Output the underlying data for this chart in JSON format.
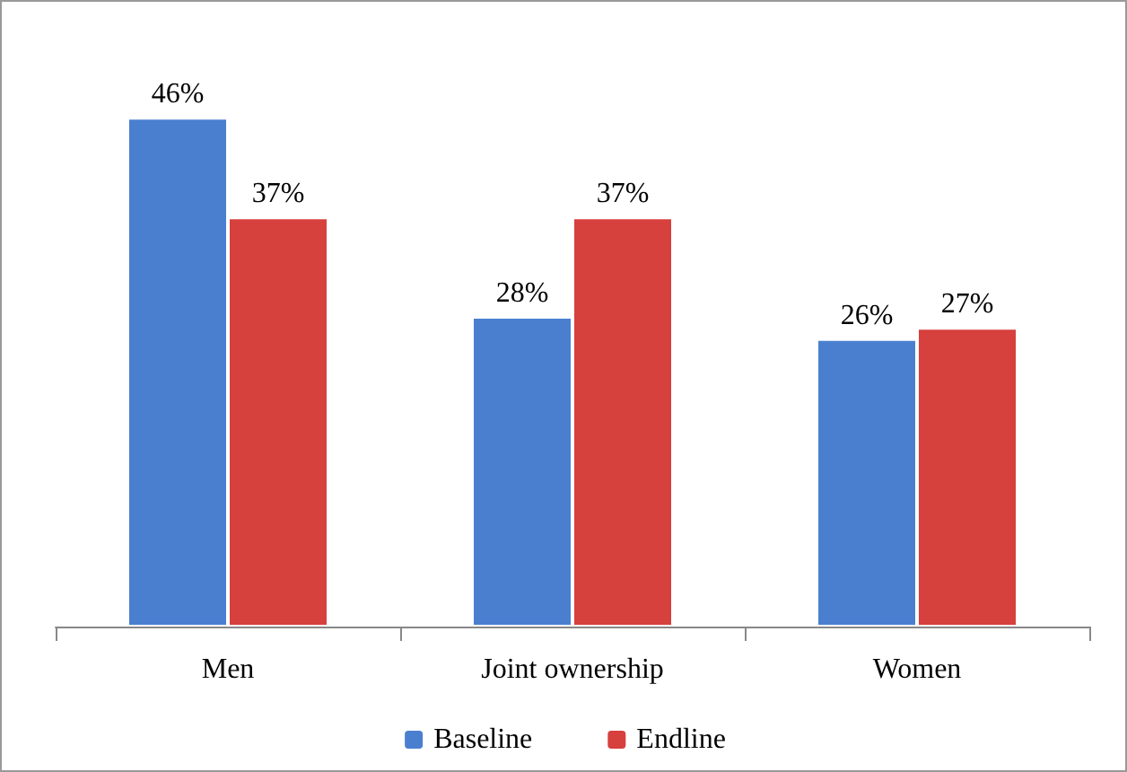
{
  "chart_data": {
    "type": "bar",
    "categories": [
      "Men",
      "Joint ownership",
      "Women"
    ],
    "series": [
      {
        "name": "Baseline",
        "color": "#4a7fd0",
        "values": [
          46,
          28,
          26
        ],
        "value_labels": [
          "46%",
          "28%",
          "26%"
        ]
      },
      {
        "name": "Endline",
        "color": "#d6403d",
        "values": [
          37,
          37,
          27
        ],
        "value_labels": [
          "37%",
          "37%",
          "27%"
        ]
      }
    ],
    "legend": "bottom"
  }
}
